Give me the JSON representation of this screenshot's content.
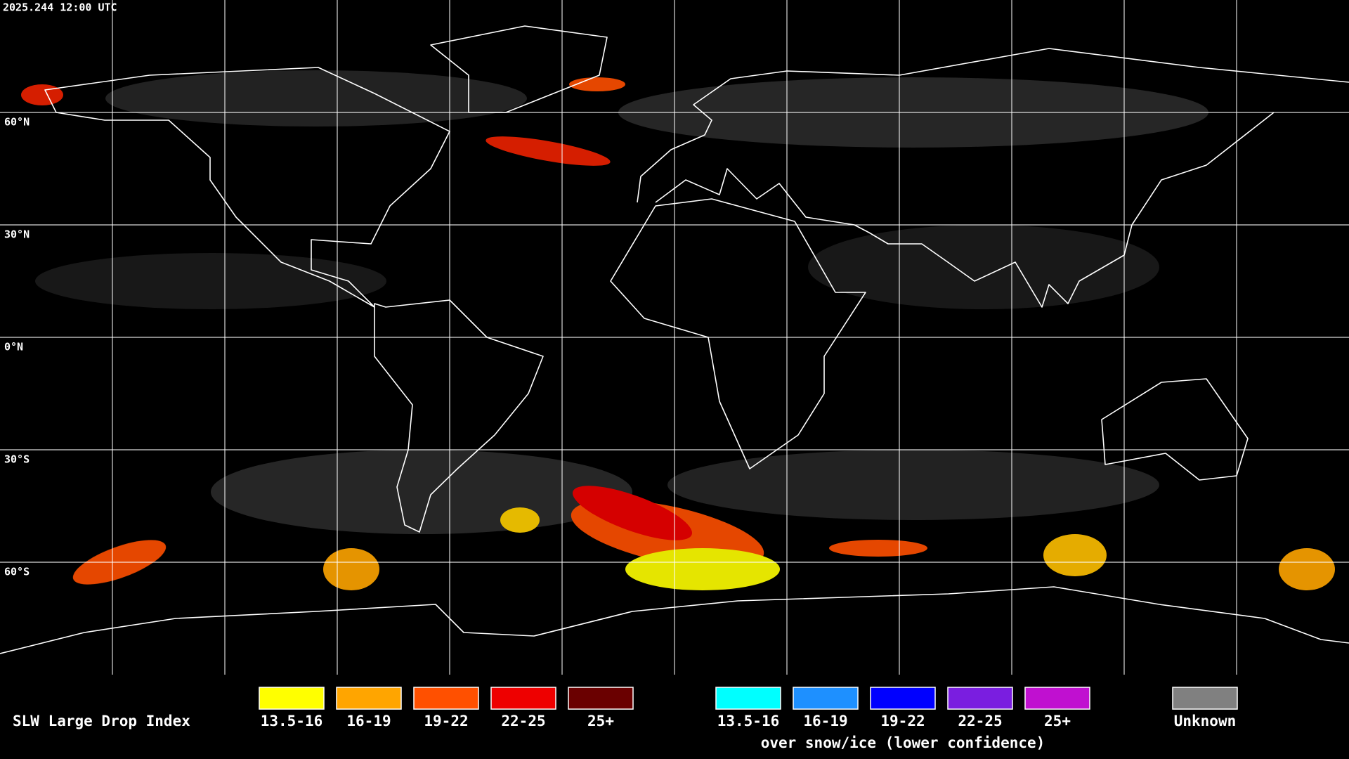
{
  "timestamp": "2025.244 12:00 UTC",
  "latitude_labels": [
    "60°N",
    "30°N",
    "0°N",
    "30°S",
    "60°S"
  ],
  "legend": {
    "title": "SLW Large Drop Index",
    "groups": [
      {
        "items": [
          {
            "label": "13.5-16",
            "color": "#ffff00"
          },
          {
            "label": "16-19",
            "color": "#ffa500"
          },
          {
            "label": "19-22",
            "color": "#ff5000"
          },
          {
            "label": "22-25",
            "color": "#ee0000"
          },
          {
            "label": "25+",
            "color": "#6a0000"
          }
        ]
      },
      {
        "items": [
          {
            "label": "13.5-16",
            "color": "#00ffff"
          },
          {
            "label": "16-19",
            "color": "#1e90ff"
          },
          {
            "label": "19-22",
            "color": "#0000ff"
          },
          {
            "label": "22-25",
            "color": "#7a1ee0"
          },
          {
            "label": "25+",
            "color": "#c010d0"
          }
        ],
        "caption": "over snow/ice (lower confidence)"
      },
      {
        "items": [
          {
            "label": "Unknown",
            "color": "#808080"
          }
        ]
      }
    ]
  }
}
